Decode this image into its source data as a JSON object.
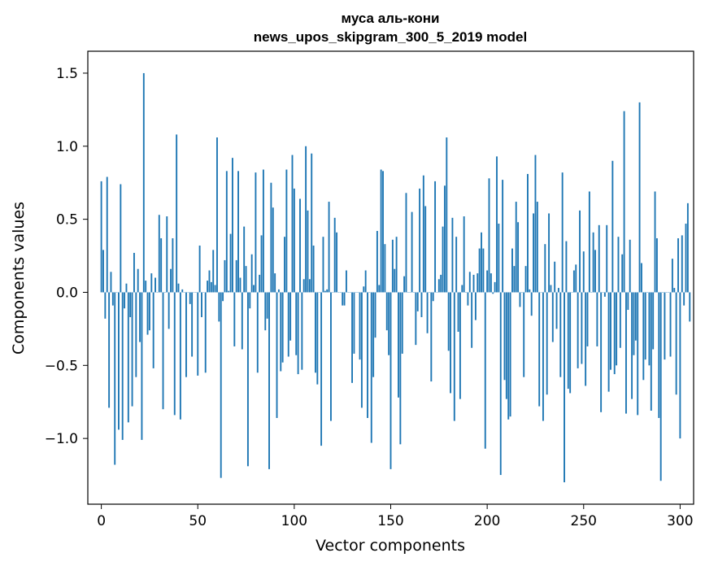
{
  "chart_data": {
    "type": "bar",
    "title": [
      "муса аль-кони",
      "news_upos_skipgram_300_5_2019 model"
    ],
    "xlabel": "Vector components",
    "ylabel": "Components values",
    "xlim": [
      -7,
      307
    ],
    "ylim": [
      -1.45,
      1.65
    ],
    "xticks": [
      0,
      50,
      100,
      150,
      200,
      250,
      300
    ],
    "xtick_labels": [
      "0",
      "50",
      "100",
      "150",
      "200",
      "250",
      "300"
    ],
    "yticks": [
      1.5,
      1.0,
      0.5,
      0.0,
      -0.5,
      -1.0
    ],
    "ytick_labels": [
      "1.5",
      "1.0",
      "0.5",
      "0.0",
      "−0.5",
      "−1.0"
    ],
    "bar_color": "#1f77b4",
    "values": [
      0.76,
      0.29,
      -0.18,
      0.79,
      -0.79,
      0.14,
      -0.09,
      -1.18,
      0.0,
      -0.94,
      0.74,
      -1.01,
      -0.11,
      0.06,
      -0.89,
      -0.17,
      -0.78,
      0.27,
      -0.58,
      0.16,
      -0.34,
      -1.01,
      1.5,
      0.08,
      -0.29,
      -0.26,
      0.13,
      -0.52,
      0.1,
      0.0,
      0.53,
      0.37,
      -0.8,
      0.0,
      0.52,
      -0.25,
      0.16,
      0.37,
      -0.84,
      1.08,
      0.06,
      -0.87,
      0.02,
      0.0,
      -0.58,
      0.0,
      -0.08,
      -0.44,
      0.0,
      0.0,
      -0.57,
      0.32,
      -0.17,
      0.0,
      -0.55,
      0.08,
      0.15,
      0.07,
      0.29,
      0.05,
      1.06,
      -0.2,
      -1.27,
      -0.06,
      0.22,
      0.83,
      0.01,
      0.4,
      0.92,
      -0.37,
      0.22,
      0.83,
      0.1,
      -0.39,
      0.45,
      0.18,
      -1.19,
      -0.11,
      0.26,
      0.05,
      0.82,
      -0.55,
      0.12,
      0.39,
      0.84,
      -0.26,
      -0.18,
      -1.21,
      0.75,
      0.58,
      0.13,
      -0.86,
      0.02,
      -0.54,
      -0.48,
      0.38,
      0.84,
      -0.44,
      -0.33,
      0.94,
      0.71,
      -0.43,
      -0.56,
      0.64,
      -0.53,
      0.09,
      1.0,
      0.56,
      0.09,
      0.95,
      0.32,
      -0.55,
      -0.63,
      0.0,
      -1.05,
      0.38,
      0.01,
      0.02,
      0.62,
      -0.88,
      0.0,
      0.51,
      0.41,
      0.0,
      0.0,
      -0.09,
      -0.09,
      0.15,
      0.0,
      0.0,
      -0.62,
      -0.42,
      0.0,
      0.0,
      -0.46,
      -0.79,
      0.04,
      0.15,
      -0.86,
      0.0,
      -1.03,
      -0.58,
      -0.31,
      0.42,
      0.05,
      0.84,
      0.83,
      0.33,
      -0.26,
      -0.43,
      -1.21,
      0.36,
      0.16,
      0.38,
      -0.72,
      -1.04,
      -0.42,
      0.11,
      0.68,
      0.0,
      0.0,
      0.55,
      0.0,
      -0.36,
      -0.13,
      0.71,
      -0.17,
      0.8,
      0.59,
      -0.28,
      0.0,
      -0.61,
      -0.06,
      0.76,
      0.0,
      0.09,
      0.12,
      0.45,
      0.73,
      1.06,
      -0.4,
      -0.69,
      0.51,
      -0.88,
      0.38,
      -0.27,
      -0.73,
      0.05,
      0.52,
      0.0,
      -0.09,
      0.14,
      -0.38,
      0.12,
      -0.19,
      0.13,
      0.3,
      0.41,
      0.3,
      -1.07,
      0.15,
      0.78,
      0.13,
      -0.01,
      0.07,
      0.93,
      0.47,
      -1.25,
      0.77,
      -0.6,
      -0.73,
      -0.87,
      -0.85,
      0.3,
      0.18,
      0.62,
      0.48,
      -0.1,
      0.0,
      -0.58,
      0.18,
      0.81,
      0.02,
      -0.16,
      0.54,
      0.94,
      0.62,
      -0.78,
      0.0,
      -0.88,
      0.33,
      -0.7,
      0.54,
      0.05,
      -0.34,
      0.21,
      -0.25,
      0.03,
      -0.58,
      0.82,
      -1.3,
      0.35,
      -0.66,
      -0.69,
      0.0,
      0.15,
      0.19,
      -0.52,
      0.56,
      -0.49,
      0.28,
      -0.64,
      -0.37,
      0.69,
      0.0,
      0.41,
      0.29,
      -0.37,
      0.46,
      -0.82,
      0.0,
      -0.03,
      0.46,
      -0.68,
      -0.53,
      0.9,
      -0.56,
      -0.5,
      0.38,
      -0.38,
      0.26,
      1.24,
      -0.83,
      -0.12,
      0.36,
      -0.73,
      -0.43,
      -0.33,
      -0.84,
      1.3,
      0.2,
      -0.6,
      -0.46,
      0.0,
      -0.5,
      -0.81,
      -0.39,
      0.69,
      0.37,
      -0.86,
      -1.29,
      0.0,
      -0.46,
      0.0,
      0.0,
      -0.44,
      0.23,
      0.03,
      -0.7,
      0.37,
      -1.0,
      0.39,
      -0.09,
      0.47,
      0.61,
      -0.2
    ]
  }
}
